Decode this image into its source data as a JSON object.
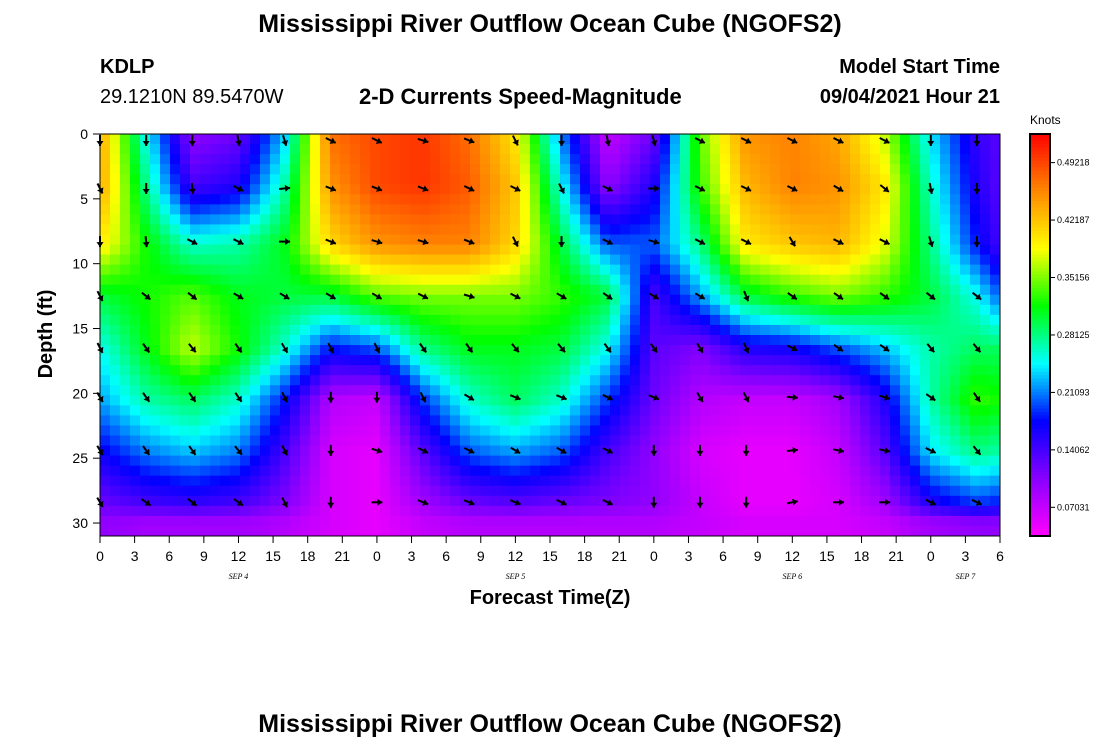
{
  "title": "Mississippi River Outflow Ocean Cube (NGOFS2)",
  "station": {
    "id": "KDLP",
    "coords": "29.1210N  89.5470W"
  },
  "subtitle": "2-D Currents Speed-Magnitude",
  "model": {
    "label": "Model Start Time",
    "value": "09/04/2021 Hour 21"
  },
  "footer_title": "Mississippi River Outflow Ocean Cube (NGOFS2)",
  "colors": {
    "scale": [
      "#ff00ff",
      "#8800ff",
      "#0000ff",
      "#00ffff",
      "#00ff00",
      "#ffff00",
      "#ff8800",
      "#ff0000"
    ],
    "arrow": "#000000"
  },
  "chart_data": {
    "type": "heatmap",
    "title": "2-D Currents Speed-Magnitude",
    "xlabel": "Forecast Time(Z)",
    "ylabel": "Depth (ft)",
    "x_tick_labels": [
      "0",
      "3",
      "6",
      "9",
      "12",
      "15",
      "18",
      "21",
      "0",
      "3",
      "6",
      "9",
      "12",
      "15",
      "18",
      "21",
      "0",
      "3",
      "6",
      "9",
      "12",
      "15",
      "18",
      "21",
      "0",
      "3",
      "6"
    ],
    "x_hours": [
      0,
      3,
      6,
      9,
      12,
      15,
      18,
      21,
      24,
      27,
      30,
      33,
      36,
      39,
      42,
      45,
      48,
      51,
      54,
      57,
      60,
      63,
      66,
      69,
      72,
      75,
      78
    ],
    "date_labels": [
      {
        "label": "SEP 4",
        "hour": 12
      },
      {
        "label": "SEP 5",
        "hour": 36
      },
      {
        "label": "SEP 6",
        "hour": 60
      },
      {
        "label": "SEP 7",
        "hour": 75
      }
    ],
    "y_ticks": [
      0,
      5,
      10,
      15,
      20,
      25,
      30
    ],
    "ylim": [
      31,
      0
    ],
    "xlim": [
      0,
      78
    ],
    "colorbar": {
      "unit": "Knots",
      "ticks": [
        "0.49218",
        "0.42187",
        "0.35156",
        "0.28125",
        "0.21093",
        "0.14062",
        "0.07031"
      ],
      "range": [
        0.0352,
        0.5272
      ]
    },
    "depths": [
      0,
      4,
      8.5,
      12.5,
      16.5,
      20.5,
      24.5,
      28.5,
      30
    ],
    "times": [
      0,
      4,
      8,
      12,
      16,
      20,
      24,
      28,
      32,
      36,
      40,
      44,
      48,
      52,
      56,
      60,
      64,
      68,
      72,
      76,
      78
    ],
    "speed": [
      [
        0.44,
        0.25,
        0.1,
        0.12,
        0.23,
        0.47,
        0.49,
        0.5,
        0.47,
        0.4,
        0.21,
        0.07,
        0.12,
        0.34,
        0.45,
        0.46,
        0.44,
        0.37,
        0.24,
        0.15,
        0.13
      ],
      [
        0.44,
        0.28,
        0.14,
        0.16,
        0.27,
        0.45,
        0.49,
        0.5,
        0.48,
        0.42,
        0.25,
        0.1,
        0.16,
        0.33,
        0.43,
        0.46,
        0.45,
        0.4,
        0.26,
        0.16,
        0.13
      ],
      [
        0.4,
        0.32,
        0.26,
        0.27,
        0.31,
        0.41,
        0.45,
        0.46,
        0.46,
        0.41,
        0.3,
        0.2,
        0.2,
        0.28,
        0.4,
        0.42,
        0.43,
        0.38,
        0.28,
        0.18,
        0.14
      ],
      [
        0.3,
        0.32,
        0.34,
        0.31,
        0.3,
        0.3,
        0.34,
        0.35,
        0.35,
        0.35,
        0.33,
        0.3,
        0.14,
        0.22,
        0.3,
        0.33,
        0.35,
        0.33,
        0.3,
        0.25,
        0.2
      ],
      [
        0.25,
        0.31,
        0.37,
        0.32,
        0.26,
        0.18,
        0.2,
        0.28,
        0.31,
        0.31,
        0.3,
        0.25,
        0.13,
        0.11,
        0.16,
        0.17,
        0.2,
        0.23,
        0.27,
        0.29,
        0.29
      ],
      [
        0.22,
        0.27,
        0.29,
        0.26,
        0.18,
        0.08,
        0.07,
        0.19,
        0.26,
        0.29,
        0.26,
        0.19,
        0.12,
        0.08,
        0.07,
        0.07,
        0.09,
        0.16,
        0.27,
        0.33,
        0.32
      ],
      [
        0.17,
        0.21,
        0.23,
        0.21,
        0.14,
        0.06,
        0.05,
        0.13,
        0.2,
        0.22,
        0.2,
        0.14,
        0.1,
        0.06,
        0.05,
        0.05,
        0.07,
        0.13,
        0.24,
        0.28,
        0.27
      ],
      [
        0.12,
        0.14,
        0.15,
        0.14,
        0.11,
        0.06,
        0.05,
        0.09,
        0.12,
        0.13,
        0.12,
        0.11,
        0.1,
        0.07,
        0.05,
        0.05,
        0.06,
        0.09,
        0.16,
        0.19,
        0.18
      ],
      [
        0.1,
        0.09,
        0.09,
        0.09,
        0.08,
        0.06,
        0.05,
        0.07,
        0.08,
        0.08,
        0.08,
        0.08,
        0.08,
        0.07,
        0.06,
        0.06,
        0.06,
        0.07,
        0.09,
        0.1,
        0.1
      ]
    ],
    "arrow_depths": [
      0.5,
      4.2,
      8.3,
      12.5,
      16.5,
      20.3,
      24.4,
      28.4
    ],
    "arrow_hours": [
      0,
      4,
      8,
      12,
      16,
      20,
      24,
      28,
      32,
      36,
      40,
      44,
      48,
      52,
      56,
      60,
      64,
      68,
      72,
      76
    ],
    "arrow_rows": [
      [
        {
          "dx": 0,
          "dy": 1
        },
        {
          "dx": 0,
          "dy": 1
        },
        {
          "dx": 0,
          "dy": 1
        },
        {
          "dx": 0.2,
          "dy": 1
        },
        {
          "dx": 0.3,
          "dy": 1
        },
        {
          "dx": 1,
          "dy": 0.5
        },
        {
          "dx": 1,
          "dy": 0.5
        },
        {
          "dx": 1,
          "dy": 0.3
        },
        {
          "dx": 1,
          "dy": 0.4
        },
        {
          "dx": 0.5,
          "dy": 1
        },
        {
          "dx": 0,
          "dy": 1
        },
        {
          "dx": 0.2,
          "dy": 1
        },
        {
          "dx": 0.3,
          "dy": 1
        },
        {
          "dx": 1,
          "dy": 0.5
        },
        {
          "dx": 1,
          "dy": 0.5
        },
        {
          "dx": 1,
          "dy": 0.5
        },
        {
          "dx": 1,
          "dy": 0.5
        },
        {
          "dx": 1,
          "dy": 0.5
        },
        {
          "dx": 0,
          "dy": 1
        },
        {
          "dx": 0,
          "dy": 1
        }
      ],
      [
        {
          "dx": 0.5,
          "dy": 1
        },
        {
          "dx": 0,
          "dy": 1
        },
        {
          "dx": 0.1,
          "dy": 1
        },
        {
          "dx": 1,
          "dy": 0.5
        },
        {
          "dx": 1,
          "dy": -0.1
        },
        {
          "dx": 1,
          "dy": 0.4
        },
        {
          "dx": 1,
          "dy": 0.4
        },
        {
          "dx": 1,
          "dy": 0.4
        },
        {
          "dx": 1,
          "dy": 0.5
        },
        {
          "dx": 1,
          "dy": 0.5
        },
        {
          "dx": 0.5,
          "dy": 1
        },
        {
          "dx": 1,
          "dy": 0.5
        },
        {
          "dx": 1,
          "dy": 0
        },
        {
          "dx": 1,
          "dy": 0.5
        },
        {
          "dx": 1,
          "dy": 0.5
        },
        {
          "dx": 1,
          "dy": 0.5
        },
        {
          "dx": 1,
          "dy": 0.6
        },
        {
          "dx": 1,
          "dy": 0.8
        },
        {
          "dx": 0.2,
          "dy": 1
        },
        {
          "dx": 0,
          "dy": 1
        }
      ],
      [
        {
          "dx": 0,
          "dy": 1
        },
        {
          "dx": 0.1,
          "dy": 1
        },
        {
          "dx": 1,
          "dy": 0.5
        },
        {
          "dx": 1,
          "dy": 0.5
        },
        {
          "dx": 1,
          "dy": 0
        },
        {
          "dx": 1,
          "dy": 0.4
        },
        {
          "dx": 1,
          "dy": 0.3
        },
        {
          "dx": 1,
          "dy": 0.3
        },
        {
          "dx": 1,
          "dy": 0.4
        },
        {
          "dx": 0.5,
          "dy": 1
        },
        {
          "dx": 0,
          "dy": 1
        },
        {
          "dx": 1,
          "dy": 0.5
        },
        {
          "dx": 1,
          "dy": 0.3
        },
        {
          "dx": 1,
          "dy": 0.5
        },
        {
          "dx": 1,
          "dy": 0.5
        },
        {
          "dx": 0.6,
          "dy": 1
        },
        {
          "dx": 1,
          "dy": 0.5
        },
        {
          "dx": 1,
          "dy": 0.5
        },
        {
          "dx": 0.3,
          "dy": 1
        },
        {
          "dx": 0,
          "dy": 1
        }
      ],
      [
        {
          "dx": 0.5,
          "dy": 1
        },
        {
          "dx": 1,
          "dy": 0.8
        },
        {
          "dx": 1,
          "dy": 0.8
        },
        {
          "dx": 1,
          "dy": 0.6
        },
        {
          "dx": 1,
          "dy": 0.6
        },
        {
          "dx": 1,
          "dy": 0.6
        },
        {
          "dx": 1,
          "dy": 0.6
        },
        {
          "dx": 1,
          "dy": 0.5
        },
        {
          "dx": 1,
          "dy": 0.3
        },
        {
          "dx": 1,
          "dy": 0.5
        },
        {
          "dx": 1,
          "dy": 0.6
        },
        {
          "dx": 1,
          "dy": 0.7
        },
        {
          "dx": 1,
          "dy": 0.6
        },
        {
          "dx": 1,
          "dy": 0.6
        },
        {
          "dx": 0.4,
          "dy": 1
        },
        {
          "dx": 1,
          "dy": 0.7
        },
        {
          "dx": 1,
          "dy": 0.7
        },
        {
          "dx": 1,
          "dy": 0.7
        },
        {
          "dx": 1,
          "dy": 0.8
        },
        {
          "dx": 1,
          "dy": 0.8
        }
      ],
      [
        {
          "dx": 0.5,
          "dy": 1
        },
        {
          "dx": 0.7,
          "dy": 1
        },
        {
          "dx": 0.8,
          "dy": 1
        },
        {
          "dx": 0.7,
          "dy": 1
        },
        {
          "dx": 0.6,
          "dy": 1
        },
        {
          "dx": 0.5,
          "dy": 1
        },
        {
          "dx": 0.5,
          "dy": 1
        },
        {
          "dx": 0.7,
          "dy": 1
        },
        {
          "dx": 0.7,
          "dy": 1
        },
        {
          "dx": 0.8,
          "dy": 1
        },
        {
          "dx": 0.8,
          "dy": 1
        },
        {
          "dx": 0.7,
          "dy": 1
        },
        {
          "dx": 0.7,
          "dy": 1
        },
        {
          "dx": 0.6,
          "dy": 1
        },
        {
          "dx": 0.4,
          "dy": 1
        },
        {
          "dx": 1,
          "dy": 0.5
        },
        {
          "dx": 1,
          "dy": 0.7
        },
        {
          "dx": 1,
          "dy": 0.7
        },
        {
          "dx": 0.8,
          "dy": 1
        },
        {
          "dx": 0.8,
          "dy": 1
        }
      ],
      [
        {
          "dx": 0.6,
          "dy": 1
        },
        {
          "dx": 0.7,
          "dy": 1
        },
        {
          "dx": 0.7,
          "dy": 1
        },
        {
          "dx": 0.7,
          "dy": 1
        },
        {
          "dx": 0.5,
          "dy": 1
        },
        {
          "dx": 0,
          "dy": 1
        },
        {
          "dx": 0,
          "dy": 1
        },
        {
          "dx": 0.5,
          "dy": 1
        },
        {
          "dx": 1,
          "dy": 0.6
        },
        {
          "dx": 1,
          "dy": 0.4
        },
        {
          "dx": 1,
          "dy": 0.4
        },
        {
          "dx": 1,
          "dy": 0.5
        },
        {
          "dx": 1,
          "dy": 0.4
        },
        {
          "dx": 0.6,
          "dy": 1
        },
        {
          "dx": 0.5,
          "dy": 1
        },
        {
          "dx": 1,
          "dy": 0.1
        },
        {
          "dx": 1,
          "dy": 0.2
        },
        {
          "dx": 1,
          "dy": 0.3
        },
        {
          "dx": 1,
          "dy": 0.7
        },
        {
          "dx": 0.7,
          "dy": 1
        }
      ],
      [
        {
          "dx": 0.6,
          "dy": 1
        },
        {
          "dx": 0.7,
          "dy": 1
        },
        {
          "dx": 0.7,
          "dy": 1
        },
        {
          "dx": 0.8,
          "dy": 1
        },
        {
          "dx": 0.5,
          "dy": 1
        },
        {
          "dx": 0,
          "dy": 1
        },
        {
          "dx": 1,
          "dy": 0.3
        },
        {
          "dx": 1,
          "dy": 0.5
        },
        {
          "dx": 1,
          "dy": 0.5
        },
        {
          "dx": 1,
          "dy": 0.6
        },
        {
          "dx": 1,
          "dy": 0.6
        },
        {
          "dx": 1,
          "dy": 0.5
        },
        {
          "dx": 0,
          "dy": 1
        },
        {
          "dx": 0,
          "dy": 1
        },
        {
          "dx": 0,
          "dy": 1
        },
        {
          "dx": 1,
          "dy": -0.1
        },
        {
          "dx": 1,
          "dy": 0.2
        },
        {
          "dx": 1,
          "dy": 0.2
        },
        {
          "dx": 1,
          "dy": 0.5
        },
        {
          "dx": 0.8,
          "dy": 1
        }
      ],
      [
        {
          "dx": 0.6,
          "dy": 1
        },
        {
          "dx": 1,
          "dy": 0.7
        },
        {
          "dx": 1,
          "dy": 0.8
        },
        {
          "dx": 1,
          "dy": 0.7
        },
        {
          "dx": 0.5,
          "dy": 1
        },
        {
          "dx": 0,
          "dy": 1
        },
        {
          "dx": 1,
          "dy": 0
        },
        {
          "dx": 1,
          "dy": 0.4
        },
        {
          "dx": 1,
          "dy": 0.4
        },
        {
          "dx": 1,
          "dy": 0.4
        },
        {
          "dx": 1,
          "dy": 0.5
        },
        {
          "dx": 1,
          "dy": 0.5
        },
        {
          "dx": 0,
          "dy": 1
        },
        {
          "dx": 0,
          "dy": 1
        },
        {
          "dx": 0,
          "dy": 1
        },
        {
          "dx": 1,
          "dy": -0.2
        },
        {
          "dx": 1,
          "dy": 0
        },
        {
          "dx": 1,
          "dy": 0
        },
        {
          "dx": 1,
          "dy": 0.5
        },
        {
          "dx": 1,
          "dy": 0.5
        }
      ]
    ]
  }
}
